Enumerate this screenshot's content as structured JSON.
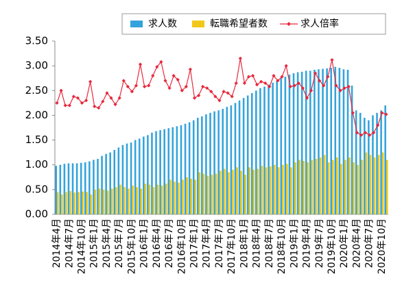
{
  "chart_data": {
    "type": "bar",
    "categories": [
      "2014年4月",
      null,
      null,
      "2014年7月",
      null,
      null,
      "2014年10月",
      null,
      null,
      "2015年1月",
      null,
      null,
      "2015年4月",
      null,
      null,
      "2015年7月",
      null,
      null,
      "2015年10月",
      null,
      null,
      "2016年1月",
      null,
      null,
      "2016年4月",
      null,
      null,
      "2016年7月",
      null,
      null,
      "2016年10月",
      null,
      null,
      "2017年1月",
      null,
      null,
      "2017年4月",
      null,
      null,
      "2017年7月",
      null,
      null,
      "2017年10月",
      null,
      null,
      "2018年1月",
      null,
      null,
      "2018年4月",
      null,
      null,
      "2018年7月",
      null,
      null,
      "2018年10月",
      null,
      null,
      "2019年1月",
      null,
      null,
      "2019年4月",
      null,
      null,
      "2019年7月",
      null,
      null,
      "2019年10月",
      null,
      null,
      "2020年1月",
      null,
      null,
      "2020年4月",
      null,
      null,
      "2020年7月",
      null,
      null,
      "2020年10月",
      null
    ],
    "series": [
      {
        "name": "求人数",
        "type": "bar",
        "color": "#33a3dc",
        "values": [
          0.98,
          1.0,
          1.02,
          1.03,
          1.03,
          1.03,
          1.04,
          1.05,
          1.07,
          1.1,
          1.12,
          1.18,
          1.22,
          1.25,
          1.3,
          1.35,
          1.4,
          1.43,
          1.45,
          1.5,
          1.53,
          1.57,
          1.6,
          1.65,
          1.68,
          1.7,
          1.72,
          1.74,
          1.76,
          1.78,
          1.8,
          1.83,
          1.86,
          1.9,
          1.95,
          1.98,
          2.02,
          2.05,
          2.08,
          2.1,
          2.13,
          2.17,
          2.2,
          2.25,
          2.3,
          2.35,
          2.4,
          2.45,
          2.5,
          2.55,
          2.58,
          2.62,
          2.66,
          2.7,
          2.75,
          2.78,
          2.82,
          2.85,
          2.87,
          2.88,
          2.9,
          2.9,
          2.92,
          2.93,
          2.94,
          2.95,
          2.96,
          2.98,
          2.96,
          2.93,
          2.92,
          2.6,
          2.1,
          2.05,
          1.95,
          1.9,
          2.0,
          2.05,
          2.1,
          2.2
        ]
      },
      {
        "name": "転職希望者数",
        "type": "bar",
        "color": "#f2c818",
        "values": [
          0.45,
          0.4,
          0.45,
          0.47,
          0.44,
          0.45,
          0.46,
          0.45,
          0.4,
          0.5,
          0.52,
          0.5,
          0.48,
          0.52,
          0.55,
          0.6,
          0.55,
          0.52,
          0.58,
          0.55,
          0.52,
          0.62,
          0.6,
          0.55,
          0.6,
          0.58,
          0.62,
          0.7,
          0.66,
          0.64,
          0.7,
          0.75,
          0.72,
          0.7,
          0.85,
          0.82,
          0.78,
          0.8,
          0.82,
          0.88,
          0.92,
          0.85,
          0.9,
          0.95,
          0.88,
          0.8,
          0.95,
          0.9,
          0.92,
          0.98,
          0.95,
          0.97,
          1.0,
          0.95,
          1.0,
          1.02,
          0.95,
          1.05,
          1.1,
          1.08,
          1.05,
          1.1,
          1.12,
          1.15,
          1.2,
          1.05,
          1.1,
          1.15,
          1.02,
          1.1,
          1.15,
          1.05,
          1.0,
          1.1,
          1.25,
          1.2,
          1.15,
          1.2,
          1.25,
          1.1
        ]
      },
      {
        "name": "求人倍率",
        "type": "line",
        "color": "#e8283c",
        "values": [
          2.25,
          2.5,
          2.2,
          2.2,
          2.38,
          2.35,
          2.25,
          2.3,
          2.68,
          2.18,
          2.15,
          2.28,
          2.45,
          2.35,
          2.22,
          2.35,
          2.7,
          2.58,
          2.48,
          2.6,
          3.03,
          2.58,
          2.6,
          2.8,
          2.98,
          3.08,
          2.7,
          2.55,
          2.8,
          2.72,
          2.5,
          2.58,
          2.93,
          2.35,
          2.4,
          2.58,
          2.55,
          2.48,
          2.38,
          2.3,
          2.48,
          2.45,
          2.38,
          2.65,
          3.15,
          2.65,
          2.78,
          2.8,
          2.62,
          2.68,
          2.65,
          2.58,
          2.8,
          2.7,
          2.78,
          3.0,
          2.58,
          2.6,
          2.65,
          2.55,
          2.35,
          2.5,
          2.85,
          2.7,
          2.6,
          2.78,
          3.12,
          2.6,
          2.5,
          2.55,
          2.58,
          2.05,
          1.65,
          1.6,
          1.65,
          1.6,
          1.65,
          1.8,
          2.05,
          2.02
        ]
      }
    ],
    "ylim": [
      0,
      3.5
    ],
    "yticks": [
      {
        "value": 0,
        "label": "0.00"
      },
      {
        "value": 0.5,
        "label": "0.50"
      },
      {
        "value": 1,
        "label": "1.00"
      },
      {
        "value": 1.5,
        "label": "1.50"
      },
      {
        "value": 2,
        "label": "2.00"
      },
      {
        "value": 2.5,
        "label": "2.50"
      },
      {
        "value": 3,
        "label": "3.00"
      },
      {
        "value": 3.5,
        "label": "3.50"
      }
    ],
    "grid": false,
    "legend": "top-right"
  }
}
